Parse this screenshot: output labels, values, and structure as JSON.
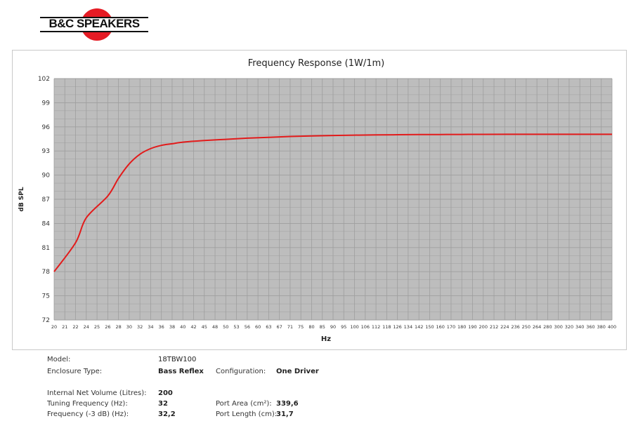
{
  "logo": {
    "text": "B&C SPEAKERS"
  },
  "chart_data": {
    "type": "line",
    "title": "Frequency Response (1W/1m)",
    "xlabel": "Hz",
    "ylabel": "dB SPL",
    "ylim": [
      72,
      102
    ],
    "y_ticks": [
      102,
      99,
      96,
      93,
      90,
      87,
      84,
      81,
      78,
      75,
      72
    ],
    "x_scale": "log",
    "xlim": [
      20,
      400
    ],
    "x_ticks": [
      20,
      21,
      22,
      24,
      25,
      26,
      28,
      30,
      32,
      34,
      36,
      38,
      40,
      42,
      45,
      48,
      50,
      53,
      56,
      60,
      63,
      67,
      71,
      75,
      80,
      85,
      90,
      95,
      100,
      106,
      112,
      118,
      126,
      134,
      142,
      150,
      160,
      170,
      180,
      190,
      200,
      212,
      224,
      236,
      250,
      264,
      280,
      300,
      320,
      340,
      360,
      380,
      400
    ],
    "grid": true,
    "series": [
      {
        "color": "#e21b1b",
        "x": [
          20,
          22,
          24,
          26,
          28,
          30,
          32,
          34,
          36,
          38,
          40,
          45,
          50,
          56,
          63,
          71,
          80,
          90,
          100,
          112,
          126,
          142,
          160,
          180,
          200,
          250,
          300,
          400
        ],
        "y": [
          78.0,
          81.6,
          84.7,
          87.4,
          89.6,
          91.4,
          92.6,
          93.3,
          93.7,
          93.9,
          94.1,
          94.3,
          94.45,
          94.6,
          94.7,
          94.8,
          94.87,
          94.93,
          94.97,
          95.0,
          95.02,
          95.04,
          95.05,
          95.06,
          95.07,
          95.08,
          95.08,
          95.08
        ]
      }
    ]
  },
  "specs": {
    "model_label": "Model:",
    "model_value": "18TBW100",
    "enclosure_label": "Enclosure Type:",
    "enclosure_value": "Bass Reflex",
    "config_label": "Configuration:",
    "config_value": "One Driver",
    "volume_label": "Internal  Net Volume (Litres):",
    "volume_value": "200",
    "tuning_label": "Tuning Frequency (Hz):",
    "tuning_value": "32",
    "f3_label": "Frequency (-3 dB) (Hz):",
    "f3_value": "32,2",
    "port_area_label": "Port Area (cm²):",
    "port_area_value": "339,6",
    "port_length_label": "Port Length (cm):",
    "port_length_value": "31,7"
  },
  "colors": {
    "plot_bg": "#bdbdbd",
    "grid": "#9e9e9e",
    "curve": "#e21b1b",
    "brand_red": "#e51b24"
  }
}
